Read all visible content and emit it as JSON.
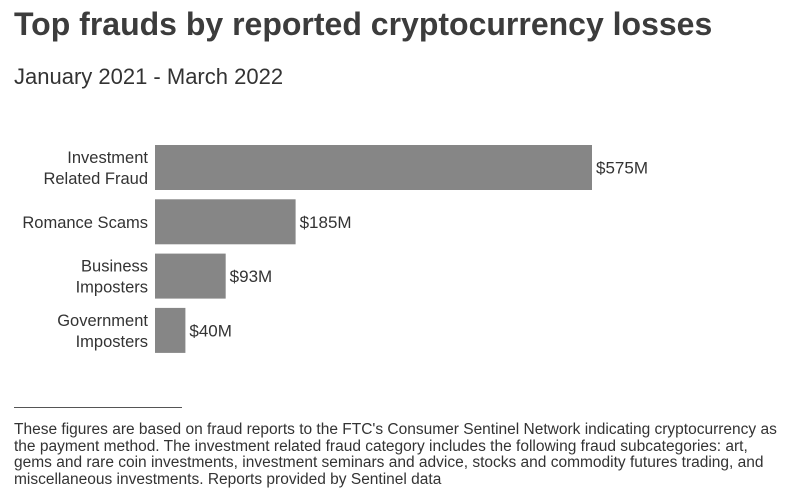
{
  "header": {
    "title": "Top frauds by reported cryptocurrency losses",
    "subtitle": "January 2021 - March 2022"
  },
  "chart_data": {
    "type": "bar",
    "orientation": "horizontal",
    "categories": [
      [
        "Investment",
        "Related Fraud"
      ],
      [
        "Romance Scams"
      ],
      [
        "Business",
        "Imposters"
      ],
      [
        "Government",
        "Imposters"
      ]
    ],
    "values": [
      575,
      185,
      93,
      40
    ],
    "value_labels": [
      "$575M",
      "$185M",
      "$93M",
      "$40M"
    ],
    "unit": "$M",
    "title": "",
    "xlabel": "",
    "ylabel": "",
    "grid": false,
    "legend": "none",
    "bar_color": "#868686"
  },
  "footnote": {
    "text": "These figures are based on fraud reports to the FTC's Consumer Sentinel Network indicating cryptocurrency as the payment method. The investment related fraud category includes the following fraud subcategories: art, gems and rare coin investments, investment seminars and advice, stocks and commodity futures trading, and miscellaneous investments. Reports provided by Sentinel data"
  }
}
